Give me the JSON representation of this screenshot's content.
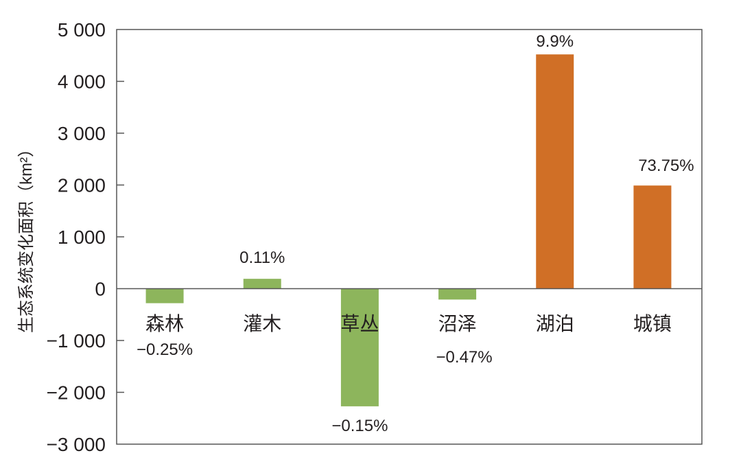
{
  "chart_data": {
    "type": "bar",
    "title": "",
    "xlabel": "",
    "ylabel": "生态系统变化面积（km²）",
    "ylim": [
      -3000,
      5000
    ],
    "yticks": [
      5000,
      4000,
      3000,
      2000,
      1000,
      0,
      -1000,
      -2000,
      -3000
    ],
    "ytick_labels": [
      "5 000",
      "4 000",
      "3 000",
      "2 000",
      "1 000",
      "0",
      "−1 000",
      "−2 000",
      "−3 000"
    ],
    "grid": false,
    "legend": null,
    "categories": [
      "森林",
      "灌木",
      "草丛",
      "沼泽",
      "湖泊",
      "城镇"
    ],
    "values": [
      -280,
      190,
      -2270,
      -210,
      4520,
      1990
    ],
    "annotations": [
      "−0.25%",
      "0.11%",
      "−0.15%",
      "−0.47%",
      "9.9%",
      "73.75%"
    ],
    "bar_colors": [
      "#8db55c",
      "#8db55c",
      "#8db55c",
      "#8db55c",
      "#d06f26",
      "#d06f26"
    ]
  },
  "colors": {
    "decrease_or_natural": "#8db55c",
    "increase": "#d06f26",
    "axis": "#555555",
    "text": "#231f20"
  }
}
